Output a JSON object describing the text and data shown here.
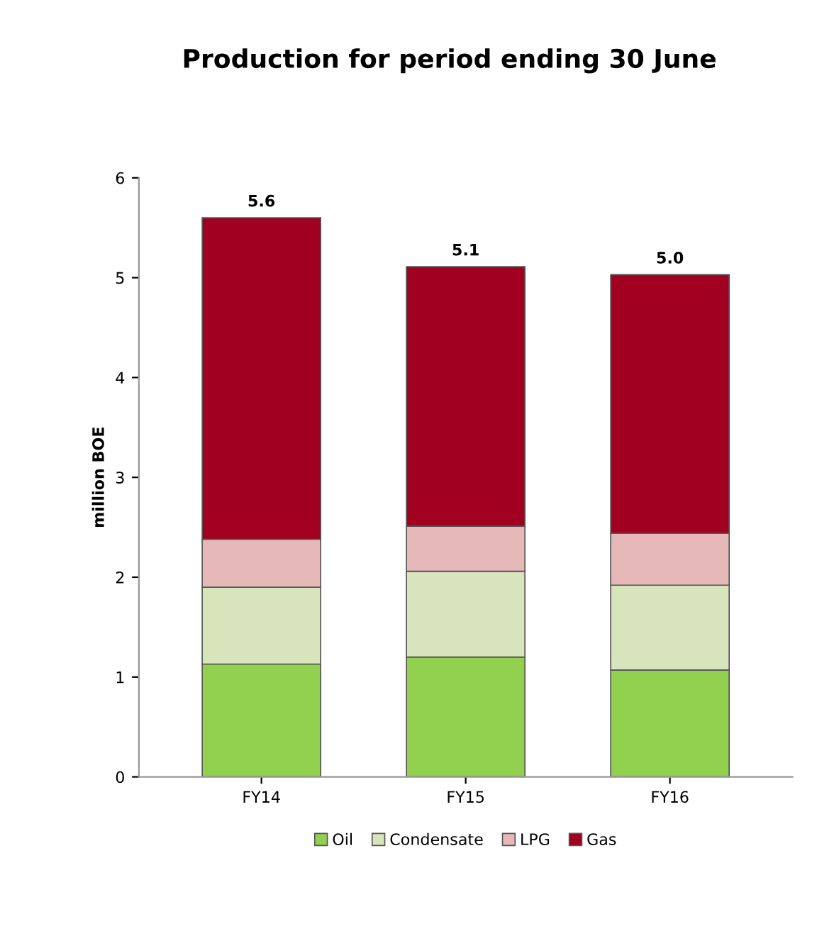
{
  "chart_data": {
    "type": "bar",
    "title": "Production for period ending 30 June",
    "ylabel": "million BOE",
    "categories": [
      "FY14",
      "FY15",
      "FY16"
    ],
    "stacked": true,
    "series": [
      {
        "name": "Oil",
        "color": "#92d050",
        "values": [
          1.13,
          1.2,
          1.07
        ]
      },
      {
        "name": "Condensate",
        "color": "#d8e4bc",
        "values": [
          0.77,
          0.86,
          0.85
        ]
      },
      {
        "name": "LPG",
        "color": "#e6b8b7",
        "values": [
          0.48,
          0.45,
          0.52
        ]
      },
      {
        "name": "Gas",
        "color": "#a20020",
        "values": [
          3.22,
          2.6,
          2.59
        ]
      }
    ],
    "totals": [
      "5.6",
      "5.1",
      "5.0"
    ],
    "ylim": [
      0,
      6
    ],
    "yticks": [
      0,
      1,
      2,
      3,
      4,
      5,
      6
    ],
    "grid": false,
    "legend": "bottom"
  }
}
